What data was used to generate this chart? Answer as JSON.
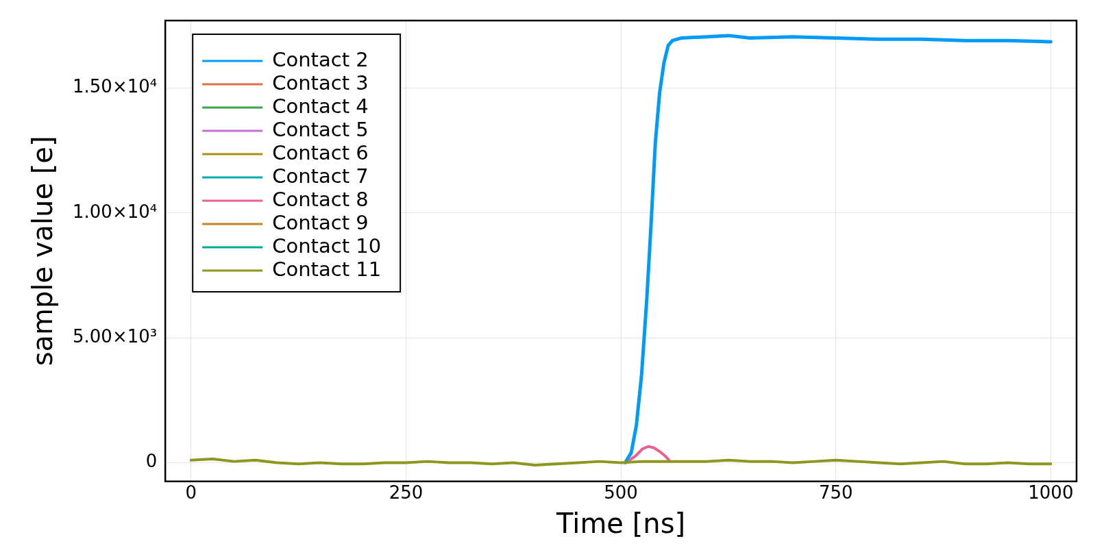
{
  "chart_data": {
    "type": "line",
    "xlabel": "Time [ns]",
    "ylabel": "sample value [e]",
    "xlim": [
      -30,
      1030
    ],
    "xticks": [
      0,
      250,
      500,
      750,
      1000
    ],
    "ylim": [
      -750,
      17700
    ],
    "yticks": [
      {
        "value": 0,
        "label": "0"
      },
      {
        "value": 5000,
        "label": "5.00×10³"
      },
      {
        "value": 10000,
        "label": "1.00×10⁴"
      },
      {
        "value": 15000,
        "label": "1.50×10⁴"
      }
    ],
    "grid": true,
    "legend": "top left",
    "marker": "none",
    "line_style": "solid",
    "series": [
      {
        "name": "Contact 2",
        "color": "#009af9",
        "x": [
          505,
          512,
          518,
          524,
          530,
          535,
          540,
          545,
          550,
          555,
          560,
          570,
          600,
          625,
          650,
          700,
          750,
          800,
          850,
          900,
          950,
          1000
        ],
        "values": [
          0,
          400,
          1500,
          3500,
          6500,
          9500,
          12800,
          14800,
          16000,
          16700,
          16900,
          17000,
          17050,
          17100,
          17000,
          17050,
          17000,
          16950,
          16950,
          16900,
          16900,
          16850
        ]
      },
      {
        "name": "Contact 3",
        "color": "#e26f46"
      },
      {
        "name": "Contact 4",
        "color": "#3da44d"
      },
      {
        "name": "Contact 5",
        "color": "#c271d2"
      },
      {
        "name": "Contact 6",
        "color": "#ac8e18"
      },
      {
        "name": "Contact 7",
        "color": "#00a9ad"
      },
      {
        "name": "Contact 8",
        "color": "#ed5e93",
        "x": [
          510,
          518,
          525,
          532,
          538,
          545,
          552,
          556
        ],
        "values": [
          100,
          300,
          550,
          650,
          600,
          450,
          250,
          100
        ]
      },
      {
        "name": "Contact 9",
        "color": "#c68225"
      },
      {
        "name": "Contact 10",
        "color": "#00a98d"
      },
      {
        "name": "Contact 11",
        "color": "#8e971d",
        "x": [
          0,
          25,
          50,
          75,
          100,
          125,
          150,
          175,
          200,
          225,
          250,
          275,
          300,
          325,
          350,
          375,
          400,
          425,
          450,
          475,
          500,
          525,
          550,
          575,
          600,
          625,
          650,
          675,
          700,
          725,
          750,
          775,
          800,
          825,
          850,
          875,
          900,
          925,
          950,
          975,
          1000
        ],
        "values": [
          100,
          150,
          50,
          100,
          0,
          -50,
          0,
          -50,
          -50,
          0,
          0,
          50,
          0,
          0,
          -50,
          0,
          -100,
          -50,
          0,
          50,
          0,
          50,
          50,
          50,
          50,
          100,
          50,
          50,
          0,
          50,
          100,
          50,
          0,
          -50,
          0,
          50,
          -50,
          -50,
          0,
          -50,
          -50
        ]
      }
    ]
  }
}
